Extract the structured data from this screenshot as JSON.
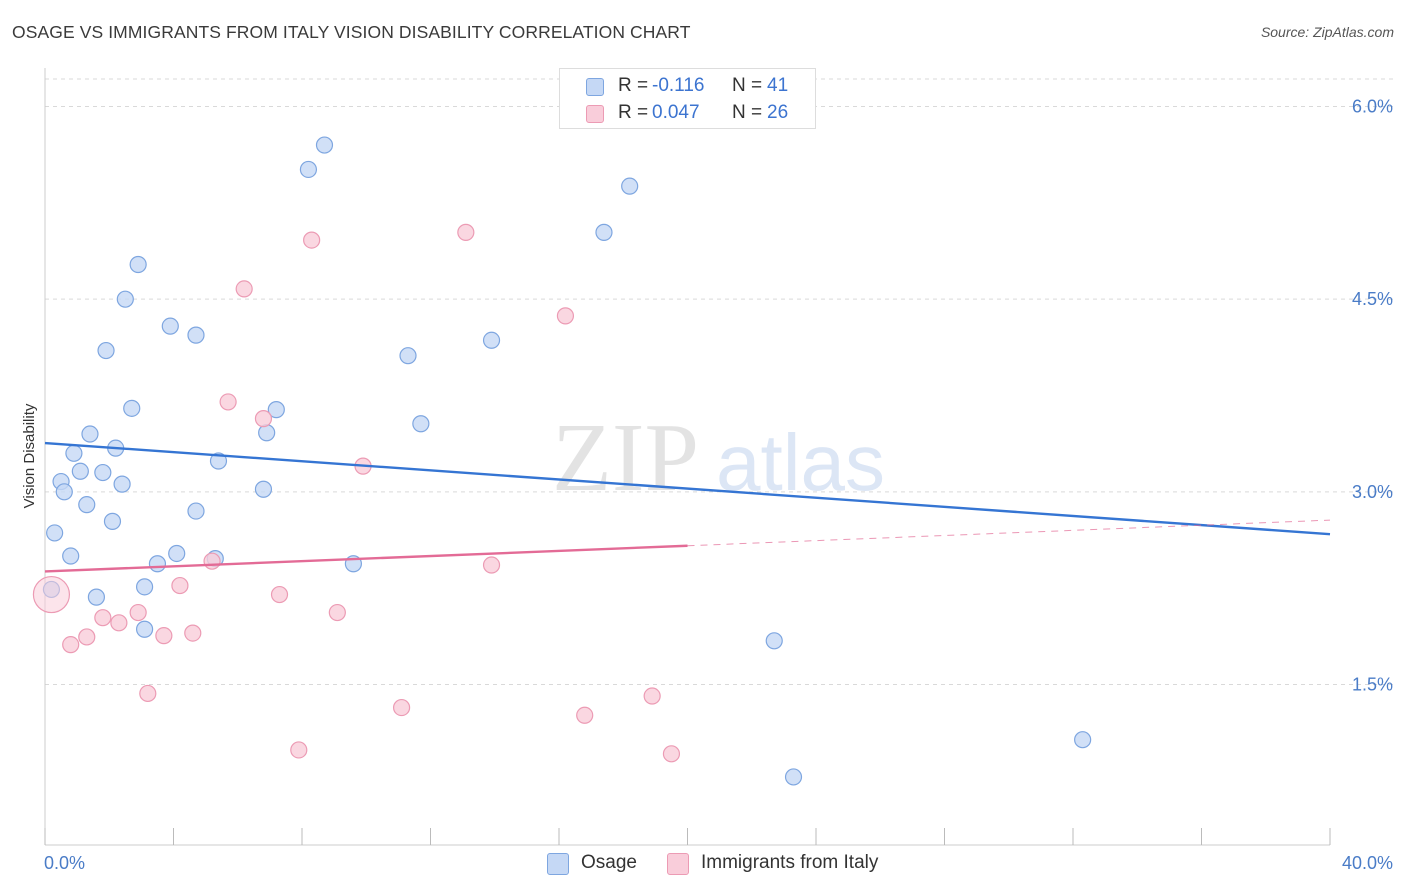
{
  "header": {
    "title": "OSAGE VS IMMIGRANTS FROM ITALY VISION DISABILITY CORRELATION CHART",
    "source": "Source: ZipAtlas.com"
  },
  "watermark": {
    "zip": "ZIP",
    "atlas": "atlas"
  },
  "legend": {
    "r_label": "R =",
    "n_label": "N =",
    "series": [
      {
        "name": "Osage",
        "r": "-0.116",
        "n": "41"
      },
      {
        "name": "Immigrants from Italy",
        "r": "0.047",
        "n": "26"
      }
    ]
  },
  "colors": {
    "osage_fill": "#c5d8f5",
    "osage_stroke": "#7ea6e0",
    "osage_line": "#3575d3",
    "italy_fill": "#f9cdda",
    "italy_stroke": "#ec9bb4",
    "italy_line": "#e36b96",
    "grid": "#d9d9d9",
    "tick_text": "#4a7cc7"
  },
  "chart_data": {
    "type": "scatter",
    "title": "OSAGE VS IMMIGRANTS FROM ITALY VISION DISABILITY CORRELATION CHART",
    "xlabel": "",
    "ylabel": "Vision Disability",
    "xlim": [
      0,
      40
    ],
    "ylim": [
      0.25,
      6.3
    ],
    "x_tick_labels": [
      {
        "value": 0,
        "label": "0.0%"
      },
      {
        "value": 40,
        "label": "40.0%"
      }
    ],
    "x_minor_ticks": [
      0,
      4,
      8,
      12,
      16,
      20,
      24,
      28,
      32,
      36,
      40
    ],
    "y_ticks": [
      {
        "value": 1.5,
        "label": "1.5%"
      },
      {
        "value": 3.0,
        "label": "3.0%"
      },
      {
        "value": 4.5,
        "label": "4.5%"
      },
      {
        "value": 6.0,
        "label": "6.0%"
      }
    ],
    "grid": true,
    "legend_position": "top-center",
    "series": [
      {
        "name": "Osage",
        "color": "#7ea6e0",
        "points": [
          [
            0.2,
            2.24
          ],
          [
            0.3,
            2.68
          ],
          [
            0.5,
            3.08
          ],
          [
            0.6,
            3.0
          ],
          [
            0.8,
            2.5
          ],
          [
            0.9,
            3.3
          ],
          [
            1.1,
            3.16
          ],
          [
            1.3,
            2.9
          ],
          [
            1.4,
            3.45
          ],
          [
            1.6,
            2.18
          ],
          [
            1.8,
            3.15
          ],
          [
            1.9,
            4.1
          ],
          [
            2.1,
            2.77
          ],
          [
            2.2,
            3.34
          ],
          [
            2.4,
            3.06
          ],
          [
            2.5,
            4.5
          ],
          [
            2.7,
            3.65
          ],
          [
            2.9,
            4.77
          ],
          [
            3.1,
            2.26
          ],
          [
            3.1,
            1.93
          ],
          [
            3.5,
            2.44
          ],
          [
            3.9,
            4.29
          ],
          [
            4.1,
            2.52
          ],
          [
            4.7,
            2.85
          ],
          [
            4.7,
            4.22
          ],
          [
            5.3,
            2.48
          ],
          [
            5.4,
            3.24
          ],
          [
            6.8,
            3.02
          ],
          [
            6.9,
            3.46
          ],
          [
            7.2,
            3.64
          ],
          [
            8.2,
            5.51
          ],
          [
            8.7,
            5.7
          ],
          [
            9.6,
            2.44
          ],
          [
            11.3,
            4.06
          ],
          [
            11.7,
            3.53
          ],
          [
            13.9,
            4.18
          ],
          [
            17.4,
            5.02
          ],
          [
            18.2,
            5.38
          ],
          [
            22.7,
            1.84
          ],
          [
            23.3,
            0.78
          ],
          [
            32.3,
            1.07
          ]
        ]
      },
      {
        "name": "Immigrants from Italy",
        "color": "#ec9bb4",
        "points": [
          [
            0.2,
            2.2
          ],
          [
            0.8,
            1.81
          ],
          [
            1.3,
            1.87
          ],
          [
            1.8,
            2.02
          ],
          [
            2.3,
            1.98
          ],
          [
            2.9,
            2.06
          ],
          [
            3.2,
            1.43
          ],
          [
            3.7,
            1.88
          ],
          [
            4.2,
            2.27
          ],
          [
            4.6,
            1.9
          ],
          [
            5.2,
            2.46
          ],
          [
            5.7,
            3.7
          ],
          [
            6.2,
            4.58
          ],
          [
            6.8,
            3.57
          ],
          [
            7.3,
            2.2
          ],
          [
            7.9,
            0.99
          ],
          [
            8.3,
            4.96
          ],
          [
            9.1,
            2.06
          ],
          [
            9.9,
            3.2
          ],
          [
            11.1,
            1.32
          ],
          [
            13.1,
            5.02
          ],
          [
            13.9,
            2.43
          ],
          [
            16.2,
            4.37
          ],
          [
            16.8,
            1.26
          ],
          [
            18.9,
            1.41
          ],
          [
            19.5,
            0.96
          ]
        ]
      }
    ],
    "trend_lines": [
      {
        "series": "Osage",
        "from": [
          0,
          3.38
        ],
        "to": [
          40,
          2.67
        ],
        "style": "solid"
      },
      {
        "series": "Immigrants from Italy",
        "from": [
          0,
          2.38
        ],
        "to": [
          20,
          2.58
        ],
        "style": "solid"
      },
      {
        "series": "Immigrants from Italy",
        "from": [
          20,
          2.58
        ],
        "to": [
          40,
          2.78
        ],
        "style": "dashed"
      }
    ]
  }
}
